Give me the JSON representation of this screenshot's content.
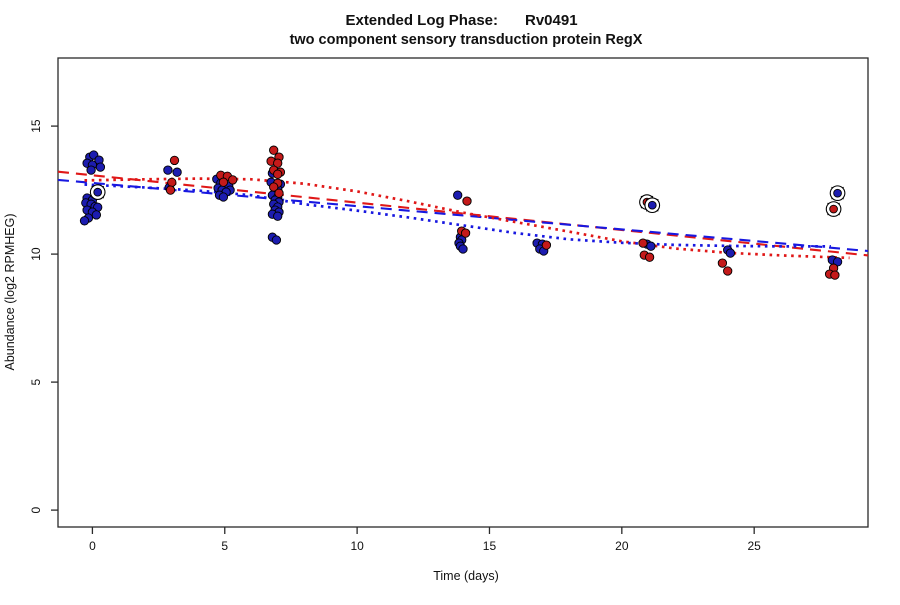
{
  "figure": {
    "title_left": "Extended Log Phase:",
    "title_gene": "Rv0491",
    "subtitle": "two component sensory transduction protein RegX"
  },
  "chart_data": {
    "type": "scatter",
    "title": "Extended Log Phase:     Rv0491",
    "subtitle": "two component sensory transduction protein RegX",
    "xlabel": "Time  (days)",
    "ylabel": "Abundance  (log2 RPMHEG)",
    "xlim": [
      -1.3,
      29.3
    ],
    "ylim": [
      -0.66,
      17.66
    ],
    "x_ticks": [
      0,
      5,
      10,
      15,
      20,
      25
    ],
    "y_ticks": [
      0,
      5,
      10,
      15
    ],
    "grid": false,
    "legend": "none",
    "point_outline_color": "#000000",
    "series": [
      {
        "name": "blue-condition",
        "color": "#1c1cb0",
        "points": [
          [
            -0.1,
            13.79
          ],
          [
            0.05,
            13.87
          ],
          [
            0.25,
            13.67
          ],
          [
            -0.2,
            13.55
          ],
          [
            0.0,
            13.48
          ],
          [
            0.3,
            13.4
          ],
          [
            -0.05,
            13.28
          ],
          [
            -0.2,
            12.19
          ],
          [
            0.0,
            12.11
          ],
          [
            -0.25,
            12.0
          ],
          [
            -0.05,
            11.95
          ],
          [
            0.1,
            11.86
          ],
          [
            0.2,
            11.83
          ],
          [
            -0.2,
            11.72
          ],
          [
            0.0,
            11.64
          ],
          [
            0.15,
            11.53
          ],
          [
            -0.15,
            11.41
          ],
          [
            -0.3,
            11.3
          ],
          [
            2.85,
            13.28
          ],
          [
            3.2,
            13.2
          ],
          [
            2.9,
            12.6
          ],
          [
            4.7,
            12.93
          ],
          [
            4.85,
            12.77
          ],
          [
            5.0,
            12.7
          ],
          [
            5.15,
            12.66
          ],
          [
            4.75,
            12.58
          ],
          [
            4.9,
            12.5
          ],
          [
            5.2,
            12.5
          ],
          [
            5.05,
            12.42
          ],
          [
            4.8,
            12.3
          ],
          [
            4.95,
            12.23
          ],
          [
            6.8,
            13.16
          ],
          [
            6.75,
            12.81
          ],
          [
            7.1,
            12.73
          ],
          [
            7.0,
            12.54
          ],
          [
            6.9,
            12.42
          ],
          [
            6.8,
            12.3
          ],
          [
            7.0,
            12.22
          ],
          [
            6.9,
            12.11
          ],
          [
            7.05,
            12.03
          ],
          [
            6.85,
            11.95
          ],
          [
            7.0,
            11.84
          ],
          [
            6.9,
            11.72
          ],
          [
            7.05,
            11.64
          ],
          [
            6.8,
            11.56
          ],
          [
            7.0,
            11.48
          ],
          [
            6.8,
            10.66
          ],
          [
            6.95,
            10.55
          ],
          [
            13.8,
            12.3
          ],
          [
            13.9,
            10.66
          ],
          [
            13.95,
            10.55
          ],
          [
            13.85,
            10.43
          ],
          [
            13.9,
            10.31
          ],
          [
            14.0,
            10.2
          ],
          [
            16.8,
            10.43
          ],
          [
            17.0,
            10.39
          ],
          [
            16.9,
            10.2
          ],
          [
            17.05,
            10.12
          ],
          [
            20.95,
            10.39
          ],
          [
            21.1,
            10.31
          ],
          [
            24.0,
            10.16
          ],
          [
            24.1,
            10.04
          ],
          [
            27.95,
            9.77
          ],
          [
            28.15,
            9.7
          ]
        ]
      },
      {
        "name": "red-condition",
        "color": "#c41a1a",
        "points": [
          [
            3.1,
            13.66
          ],
          [
            3.0,
            12.8
          ],
          [
            2.95,
            12.5
          ],
          [
            4.85,
            13.08
          ],
          [
            5.1,
            13.04
          ],
          [
            5.3,
            12.9
          ],
          [
            4.95,
            12.81
          ],
          [
            6.85,
            14.06
          ],
          [
            7.05,
            13.79
          ],
          [
            6.75,
            13.63
          ],
          [
            7.0,
            13.55
          ],
          [
            6.85,
            13.28
          ],
          [
            7.1,
            13.2
          ],
          [
            7.0,
            13.12
          ],
          [
            7.0,
            12.77
          ],
          [
            6.85,
            12.62
          ],
          [
            7.05,
            12.38
          ],
          [
            14.15,
            12.07
          ],
          [
            13.95,
            10.9
          ],
          [
            14.1,
            10.82
          ],
          [
            17.15,
            10.35
          ],
          [
            20.8,
            10.43
          ],
          [
            20.85,
            9.96
          ],
          [
            21.05,
            9.88
          ],
          [
            23.8,
            9.65
          ],
          [
            24.0,
            9.34
          ],
          [
            28.0,
            9.45
          ],
          [
            27.85,
            9.22
          ],
          [
            28.05,
            9.18
          ]
        ]
      }
    ],
    "circled_points": [
      {
        "day": 0.2,
        "value": 12.42,
        "series": "blue-condition",
        "color": "#1c1cb0"
      },
      {
        "day": 20.95,
        "value": 12.03,
        "series": "red-condition",
        "color": "#c41a1a"
      },
      {
        "day": 21.15,
        "value": 11.91,
        "series": "blue-condition",
        "color": "#1c1cb0"
      },
      {
        "day": 28.15,
        "value": 12.38,
        "series": "blue-condition",
        "color": "#1c1cb0"
      },
      {
        "day": 28.0,
        "value": 11.76,
        "series": "red-condition",
        "color": "#c41a1a"
      }
    ],
    "trend_lines": [
      {
        "name": "red-linear-fit",
        "style": "dashed",
        "color": "#e01818",
        "points": [
          [
            -1.3,
            13.22
          ],
          [
            29.3,
            9.95
          ]
        ]
      },
      {
        "name": "blue-linear-fit",
        "style": "dashed",
        "color": "#1818e0",
        "points": [
          [
            -1.3,
            12.9
          ],
          [
            29.3,
            10.12
          ]
        ]
      },
      {
        "name": "red-smooth-fit",
        "style": "dotted",
        "color": "#e01818",
        "points": [
          [
            -0.3,
            12.88
          ],
          [
            2,
            12.92
          ],
          [
            4,
            12.95
          ],
          [
            6,
            12.92
          ],
          [
            8,
            12.75
          ],
          [
            10,
            12.45
          ],
          [
            12,
            12.05
          ],
          [
            14,
            11.62
          ],
          [
            16,
            11.25
          ],
          [
            18,
            10.88
          ],
          [
            20,
            10.5
          ],
          [
            22,
            10.22
          ],
          [
            24,
            10.05
          ],
          [
            26,
            9.95
          ],
          [
            28.6,
            9.85
          ]
        ]
      },
      {
        "name": "blue-smooth-fit",
        "style": "dotted",
        "color": "#1818e0",
        "points": [
          [
            -0.3,
            12.72
          ],
          [
            2,
            12.6
          ],
          [
            4,
            12.48
          ],
          [
            6,
            12.3
          ],
          [
            8,
            11.95
          ],
          [
            10,
            11.7
          ],
          [
            12,
            11.42
          ],
          [
            14,
            11.12
          ],
          [
            16,
            10.82
          ],
          [
            18,
            10.58
          ],
          [
            20,
            10.44
          ],
          [
            22,
            10.36
          ],
          [
            24,
            10.32
          ],
          [
            26,
            10.3
          ],
          [
            27.9,
            10.3
          ]
        ]
      }
    ]
  }
}
